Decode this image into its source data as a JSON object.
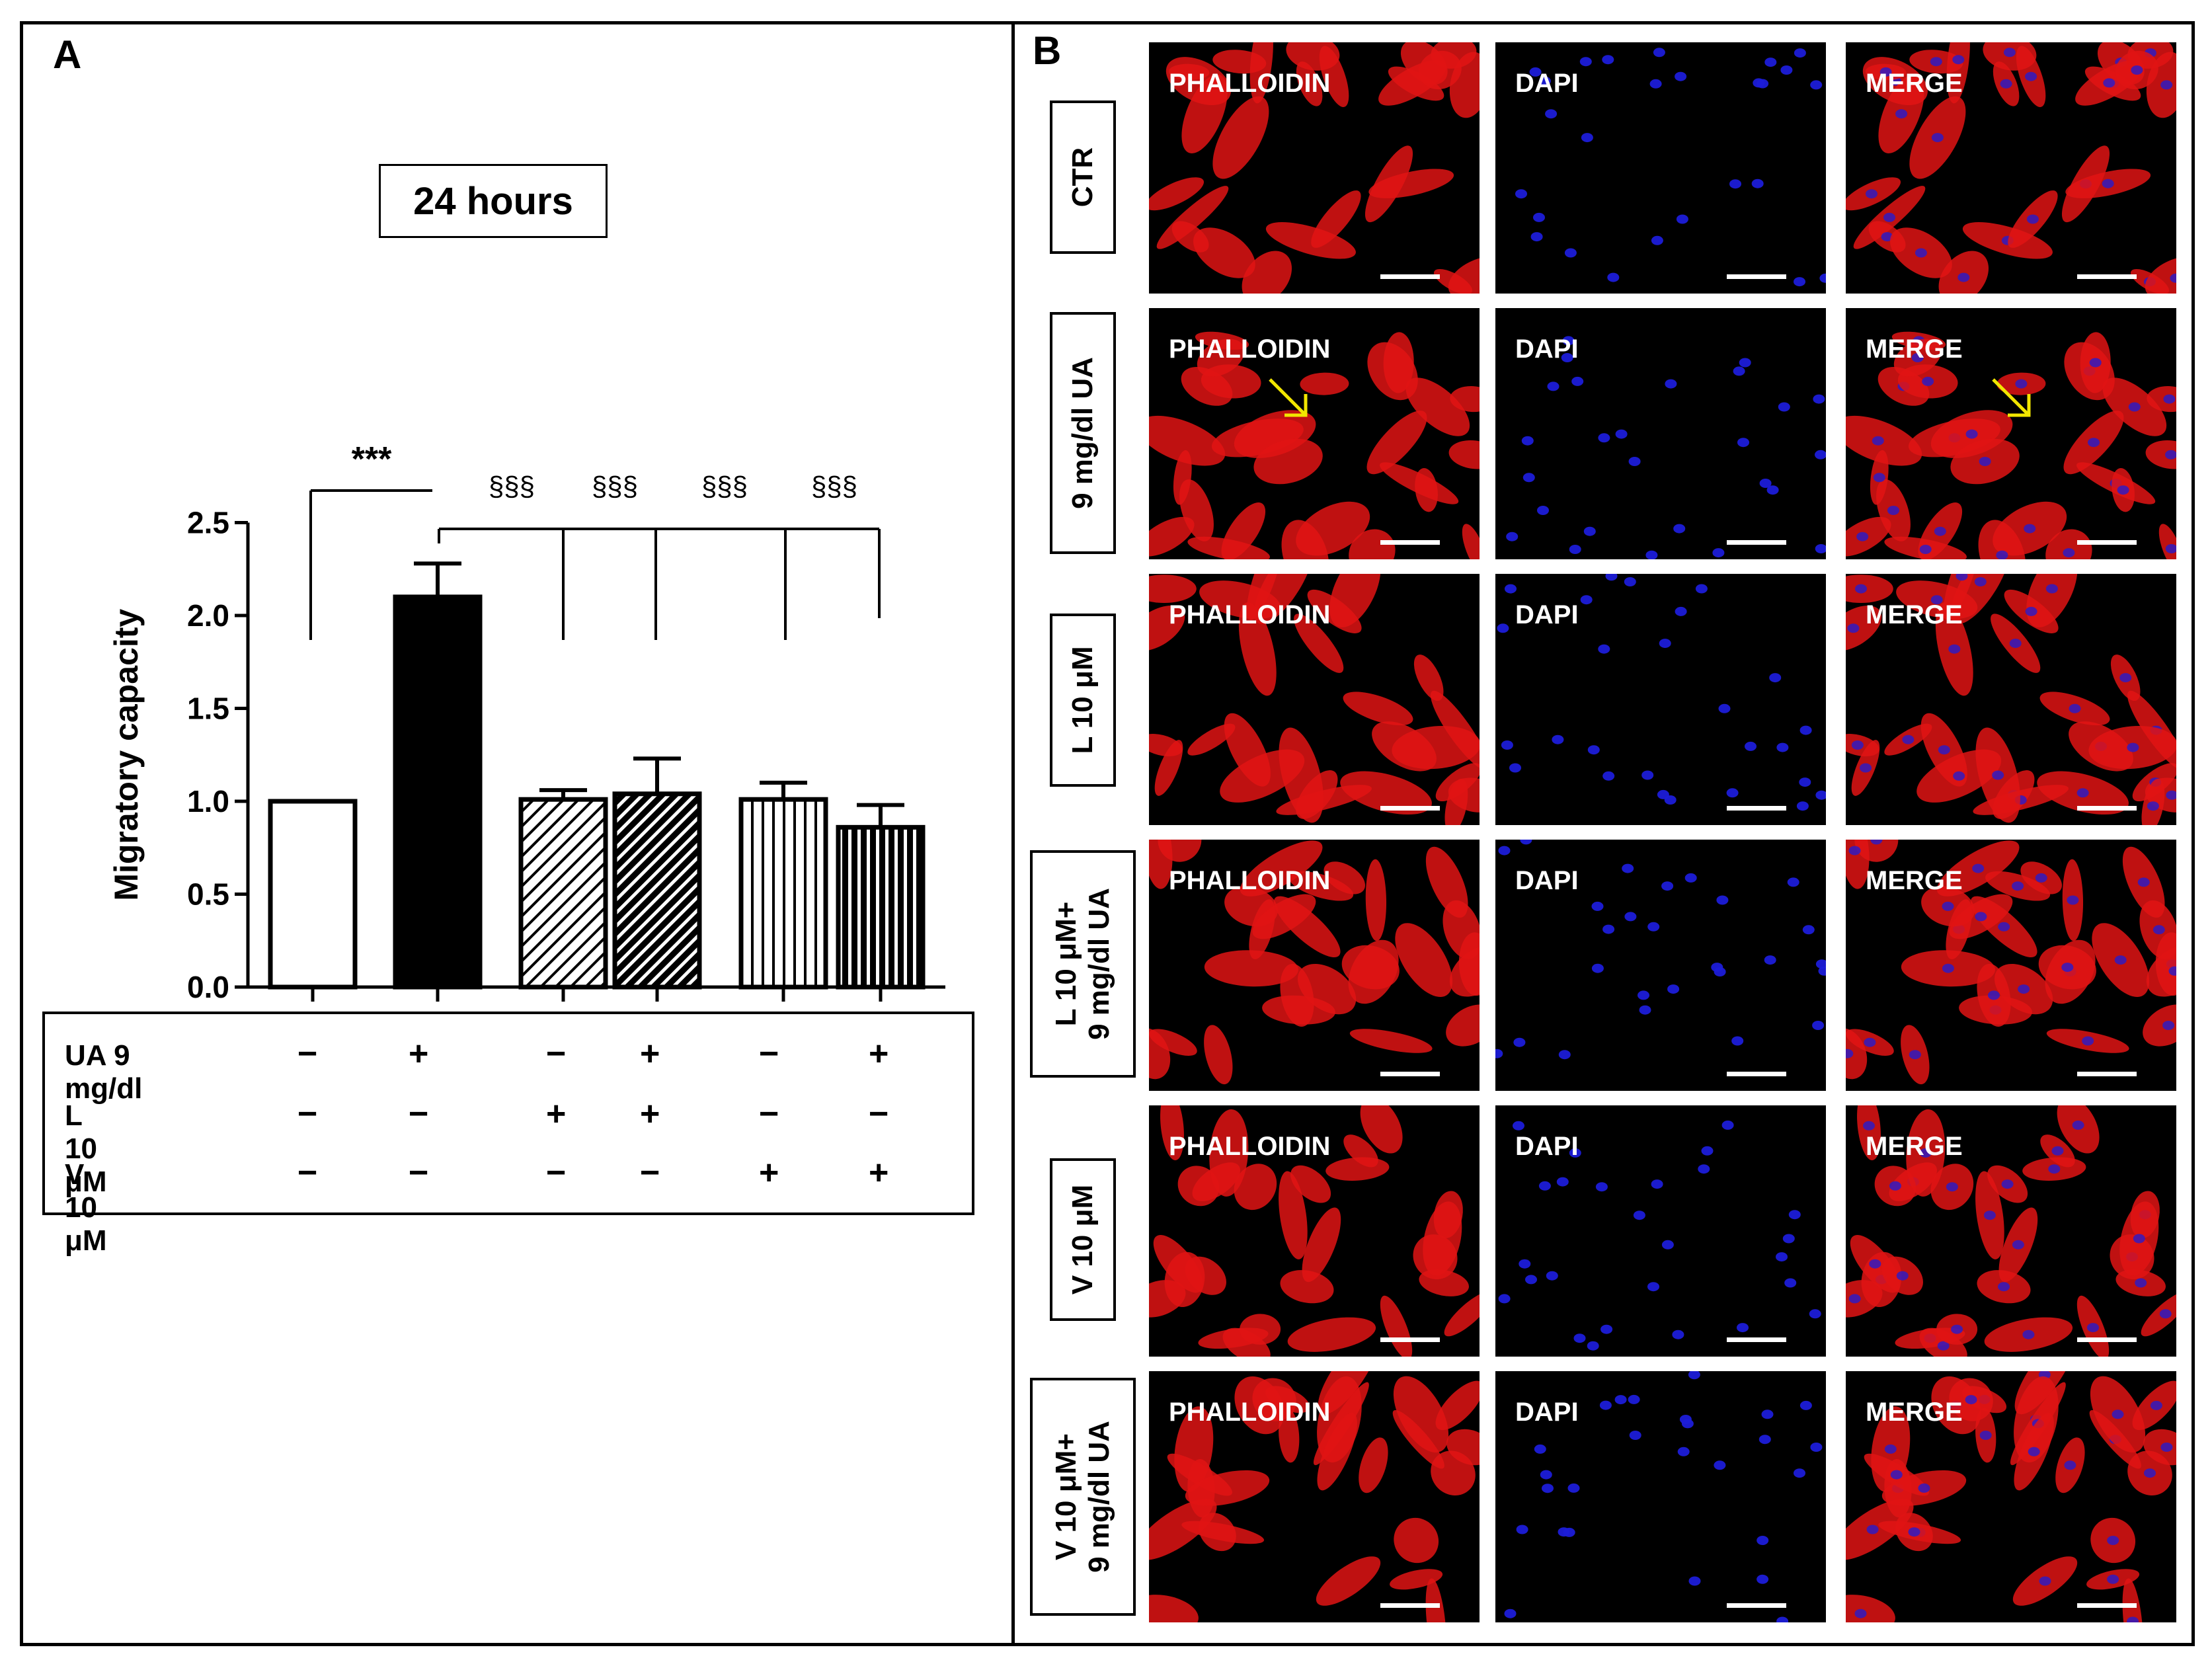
{
  "panels": {
    "a_letter": "A",
    "b_letter": "B"
  },
  "chart_data": {
    "type": "bar",
    "title": "24 hours",
    "ylabel": "Migratory capacity",
    "ylim": [
      0,
      2.5
    ],
    "yticks": [
      "0.0",
      "0.5",
      "1.0",
      "1.5",
      "2.0",
      "2.5"
    ],
    "bars": [
      {
        "value": 1.0,
        "err": 0.0,
        "fill": "white"
      },
      {
        "value": 2.1,
        "err": 0.18,
        "fill": "black"
      },
      {
        "value": 1.01,
        "err": 0.05,
        "fill": "diag-light"
      },
      {
        "value": 1.04,
        "err": 0.19,
        "fill": "diag-dark"
      },
      {
        "value": 1.01,
        "err": 0.09,
        "fill": "vert-light"
      },
      {
        "value": 0.86,
        "err": 0.12,
        "fill": "vert-dark"
      }
    ],
    "significance": {
      "primary": {
        "label": "***",
        "from": 0,
        "to": 1
      },
      "secondary_label": "§§§",
      "secondary_targets": [
        2,
        3,
        4,
        5
      ]
    },
    "conditions": [
      {
        "label": "UA 9 mg/dl",
        "signs": [
          "−",
          "+",
          "−",
          "+",
          "−",
          "+"
        ]
      },
      {
        "label": "L 10 μM",
        "signs": [
          "−",
          "−",
          "+",
          "+",
          "−",
          "−"
        ]
      },
      {
        "label": "V 10 μM",
        "signs": [
          "−",
          "−",
          "−",
          "−",
          "+",
          "+"
        ]
      }
    ]
  },
  "micrographs": {
    "columns": [
      {
        "label": "PHALLOIDIN",
        "color": "#e01414"
      },
      {
        "label": "DAPI",
        "color": "#1c1cd8"
      },
      {
        "label": "MERGE",
        "color": "#c81830"
      }
    ],
    "rows": [
      {
        "label": [
          "CTR"
        ]
      },
      {
        "label": [
          "9 mg/dl UA"
        ],
        "arrow": true
      },
      {
        "label": [
          "L 10 μM"
        ]
      },
      {
        "label": [
          "L 10 μM+",
          "9 mg/dl UA"
        ]
      },
      {
        "label": [
          "V 10 μM"
        ]
      },
      {
        "label": [
          "V 10 μM+",
          "9 mg/dl UA"
        ]
      }
    ],
    "arrow_color": "#f2e600"
  }
}
